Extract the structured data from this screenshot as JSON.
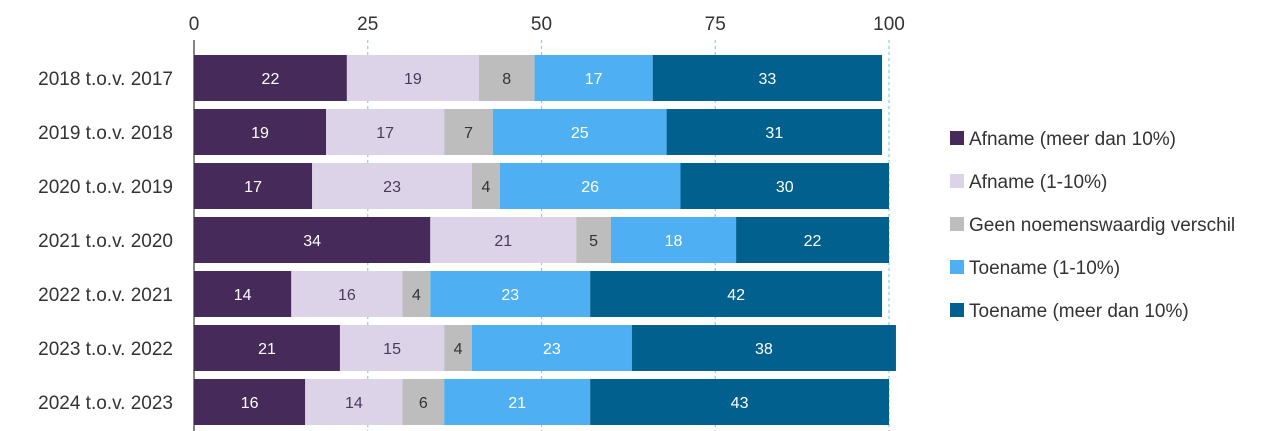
{
  "chart_data": {
    "type": "bar",
    "orientation": "horizontal",
    "stacked": true,
    "categories": [
      "2018 t.o.v. 2017",
      "2019 t.o.v. 2018",
      "2020 t.o.v. 2019",
      "2021 t.o.v. 2020",
      "2022 t.o.v. 2021",
      "2023 t.o.v. 2022",
      "2024 t.o.v. 2023"
    ],
    "series": [
      {
        "name": "Afname (meer dan 10%)",
        "color": "#452a5a",
        "label_color": "#ffffff",
        "values": [
          22,
          19,
          17,
          34,
          14,
          21,
          16
        ]
      },
      {
        "name": "Afname (1-10%)",
        "color": "#dcd3e9",
        "label_color": "#4a3a5a",
        "values": [
          19,
          17,
          23,
          21,
          16,
          15,
          14
        ]
      },
      {
        "name": "Geen noemenswaardig verschil",
        "color": "#bdbdbd",
        "label_color": "#333333",
        "values": [
          8,
          7,
          4,
          5,
          4,
          4,
          6
        ]
      },
      {
        "name": "Toename (1-10%)",
        "color": "#4eb0f2",
        "label_color": "#ffffff",
        "values": [
          17,
          25,
          26,
          18,
          23,
          23,
          21
        ]
      },
      {
        "name": "Toename (meer dan 10%)",
        "color": "#02608f",
        "label_color": "#ffffff",
        "values": [
          33,
          31,
          30,
          22,
          42,
          38,
          43
        ]
      }
    ],
    "xlim": [
      0,
      100
    ],
    "xticks": [
      0,
      25,
      50,
      75,
      100
    ],
    "xlabel": "",
    "ylabel": "",
    "title": "",
    "legend_position": "right",
    "grid": true
  }
}
